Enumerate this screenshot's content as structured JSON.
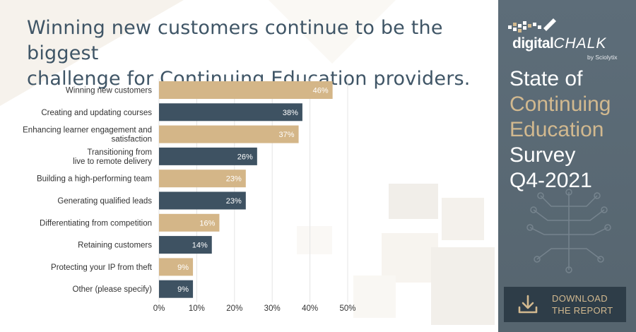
{
  "headline": {
    "line1": "Winning new customers continue to be the biggest",
    "line2": "challenge for Continuing Education providers."
  },
  "brand": {
    "name_part1": "digital",
    "name_part2": "CHALK",
    "byline": "by Sciolytix"
  },
  "report_title": {
    "line1": "State of",
    "line2": "Continuing",
    "line3": "Education",
    "line4": "Survey",
    "line5": "Q4-2021"
  },
  "download": {
    "line1": "DOWNLOAD",
    "line2": "THE REPORT"
  },
  "colors": {
    "gold": "#d4b688",
    "slate": "#3e5262",
    "sidebar": "#5a6a76",
    "headline": "#3f5566"
  },
  "chart_data": {
    "type": "bar",
    "orientation": "horizontal",
    "categories": [
      [
        "Winning new customers"
      ],
      [
        "Creating and updating courses"
      ],
      [
        "Enhancing learner engagement and",
        "satisfaction"
      ],
      [
        "Transitioning from",
        "live to remote delivery"
      ],
      [
        "Building a high-performing team"
      ],
      [
        "Generating qualified leads"
      ],
      [
        "Differentiating from competition"
      ],
      [
        "Retaining customers"
      ],
      [
        "Protecting your IP from theft"
      ],
      [
        "Other (please specify)"
      ]
    ],
    "values": [
      46,
      38,
      37,
      26,
      23,
      23,
      16,
      14,
      9,
      9
    ],
    "value_labels": [
      "46%",
      "38%",
      "37%",
      "26%",
      "23%",
      "23%",
      "16%",
      "14%",
      "9%",
      "9%"
    ],
    "bar_colors": [
      "gold",
      "slate",
      "gold",
      "slate",
      "gold",
      "slate",
      "gold",
      "slate",
      "gold",
      "slate"
    ],
    "xlim": [
      0,
      50
    ],
    "xticks": [
      "0%",
      "10%",
      "20%",
      "30%",
      "40%",
      "50%"
    ],
    "grid": true
  }
}
